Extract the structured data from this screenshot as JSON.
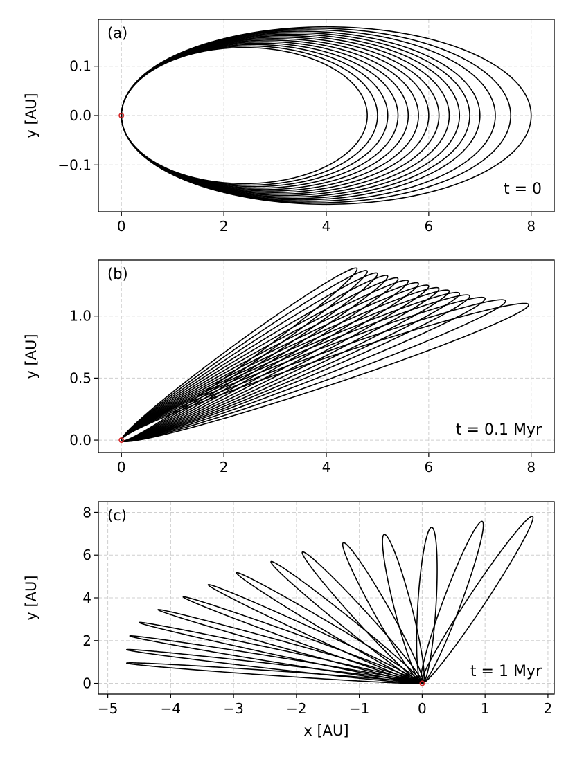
{
  "chart_data": [
    {
      "id": "a",
      "type": "line",
      "panel_label": "(a)",
      "time_label": "t = 0",
      "xlabel": "",
      "ylabel": "y [AU]",
      "xlim": [
        -0.45,
        8.45
      ],
      "ylim": [
        -0.195,
        0.195
      ],
      "xticks": [
        0,
        2,
        4,
        6,
        8
      ],
      "xticklabels": [
        "0",
        "2",
        "4",
        "6",
        "8"
      ],
      "yticks": [
        -0.1,
        0.0,
        0.1
      ],
      "yticklabels": [
        "−0.1",
        "0.0",
        "0.1"
      ],
      "grid": true,
      "star_position": [
        0,
        0
      ],
      "orbits": {
        "periapsis_x": 0,
        "apoapsis_x": [
          4.8,
          5.0,
          5.2,
          5.4,
          5.6,
          5.8,
          6.0,
          6.2,
          6.4,
          6.6,
          6.8,
          7.0,
          7.3,
          7.6,
          8.0
        ],
        "semi_minor_axis": [
          0.138,
          0.141,
          0.144,
          0.147,
          0.15,
          0.153,
          0.156,
          0.159,
          0.162,
          0.165,
          0.168,
          0.171,
          0.174,
          0.177,
          0.18
        ],
        "rotation_deg": 0
      }
    },
    {
      "id": "b",
      "type": "line",
      "panel_label": "(b)",
      "time_label": "t = 0.1 Myr",
      "xlabel": "",
      "ylabel": "y [AU]",
      "xlim": [
        -0.45,
        8.45
      ],
      "ylim": [
        -0.1,
        1.45
      ],
      "xticks": [
        0,
        2,
        4,
        6,
        8
      ],
      "xticklabels": [
        "0",
        "2",
        "4",
        "6",
        "8"
      ],
      "yticks": [
        0.0,
        0.5,
        1.0
      ],
      "yticklabels": [
        "0.0",
        "0.5",
        "1.0"
      ],
      "grid": true,
      "star_position": [
        0,
        0
      ],
      "orbits": {
        "apoapsis_x": [
          4.6,
          4.8,
          5.0,
          5.2,
          5.4,
          5.6,
          5.8,
          6.0,
          6.2,
          6.4,
          6.6,
          6.8,
          7.1,
          7.5,
          7.95
        ],
        "apoapsis_y": [
          1.38,
          1.36,
          1.34,
          1.32,
          1.3,
          1.28,
          1.26,
          1.24,
          1.22,
          1.2,
          1.18,
          1.16,
          1.14,
          1.12,
          1.09
        ],
        "semi_minor_axis": [
          0.1,
          0.101,
          0.102,
          0.103,
          0.104,
          0.105,
          0.106,
          0.107,
          0.108,
          0.109,
          0.11,
          0.111,
          0.112,
          0.113,
          0.114
        ]
      }
    },
    {
      "id": "c",
      "type": "line",
      "panel_label": "(c)",
      "time_label": "t = 1 Myr",
      "xlabel": "x [AU]",
      "ylabel": "y [AU]",
      "xlim": [
        -5.15,
        2.1
      ],
      "ylim": [
        -0.5,
        8.5
      ],
      "xticks": [
        -5,
        -4,
        -3,
        -2,
        -1,
        0,
        1,
        2
      ],
      "xticklabels": [
        "−5",
        "−4",
        "−3",
        "−2",
        "−1",
        "0",
        "1",
        "2"
      ],
      "yticks": [
        0,
        2,
        4,
        6,
        8
      ],
      "yticklabels": [
        "0",
        "2",
        "4",
        "6",
        "8"
      ],
      "grid": true,
      "star_position": [
        0,
        0
      ],
      "orbits": {
        "apoapsis_x": [
          -4.7,
          -4.7,
          -4.65,
          -4.5,
          -4.2,
          -3.8,
          -3.4,
          -2.95,
          -2.4,
          -1.9,
          -1.25,
          -0.6,
          0.15,
          0.95,
          1.75
        ],
        "apoapsis_y": [
          0.95,
          1.58,
          2.22,
          2.85,
          3.45,
          4.05,
          4.62,
          5.18,
          5.7,
          6.15,
          6.58,
          6.97,
          7.3,
          7.58,
          7.82
        ],
        "semi_minor_axis": [
          0.11,
          0.112,
          0.114,
          0.116,
          0.118,
          0.12,
          0.123,
          0.126,
          0.129,
          0.133,
          0.137,
          0.141,
          0.145,
          0.15,
          0.156
        ]
      }
    }
  ]
}
